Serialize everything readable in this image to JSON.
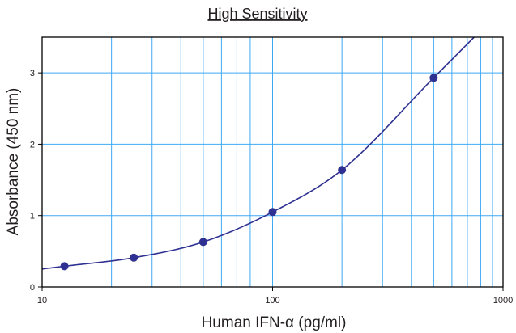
{
  "chart_data": {
    "type": "scatter",
    "title": "High Sensitivity",
    "xlabel": "Human IFN-α (pg/ml)",
    "ylabel": "Absorbance (450 nm)",
    "xscale": "log",
    "xlim": [
      10,
      1000
    ],
    "ylim": [
      0,
      3.5
    ],
    "x_ticks": [
      10,
      100,
      1000
    ],
    "x_tick_labels": [
      "10",
      "100",
      "1000"
    ],
    "y_ticks": [
      0,
      1,
      2,
      3
    ],
    "y_tick_labels": [
      "0",
      "1",
      "2",
      "3"
    ],
    "grid": true,
    "series": [
      {
        "x": [
          12.5,
          25,
          50,
          100,
          200,
          500
        ],
        "y": [
          0.29,
          0.41,
          0.63,
          1.05,
          1.64,
          2.93
        ]
      }
    ],
    "fit_curve": true,
    "colors": {
      "points": "#2e3192",
      "curve": "#2e3192",
      "grid": "#3fa9f5",
      "frame": "#000000",
      "text": "#231f20"
    }
  }
}
